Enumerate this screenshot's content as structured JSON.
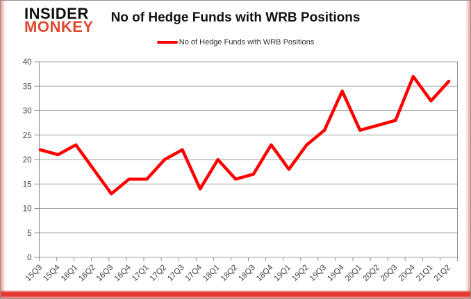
{
  "brand": {
    "line1": "INSIDER",
    "line2": "MONKEY"
  },
  "header": {
    "title": "No of Hedge Funds with WRB Positions"
  },
  "legend": {
    "label": "No of Hedge Funds with WRB Positions"
  },
  "colors": {
    "series": "#ff0000",
    "brand_accent": "#dd4a32",
    "grid": "#a3a3a3",
    "axis": "#8c8c8c",
    "tick_text": "#404040",
    "frame_bar": "#e6392f"
  },
  "chart_data": {
    "type": "line",
    "title": "No of Hedge Funds with WRB Positions",
    "categories": [
      "15Q3",
      "15Q4",
      "16Q1",
      "16Q2",
      "16Q3",
      "16Q4",
      "17Q1",
      "17Q2",
      "17Q3",
      "17Q4",
      "18Q1",
      "18Q2",
      "18Q3",
      "18Q4",
      "19Q1",
      "19Q2",
      "19Q3",
      "19Q4",
      "20Q1",
      "20Q2",
      "20Q3",
      "20Q4",
      "21Q1",
      "21Q2"
    ],
    "series": [
      {
        "name": "No of Hedge Funds with WRB Positions",
        "color": "#ff0000",
        "values": [
          22,
          21,
          23,
          18,
          13,
          16,
          16,
          20,
          22,
          14,
          20,
          16,
          17,
          23,
          18,
          23,
          26,
          34,
          26,
          27,
          28,
          37,
          32,
          36
        ]
      }
    ],
    "ylim": [
      0,
      40
    ],
    "ytick_step": 5,
    "grid": true,
    "legend_position": "top-center",
    "xlabel": "",
    "ylabel": ""
  }
}
